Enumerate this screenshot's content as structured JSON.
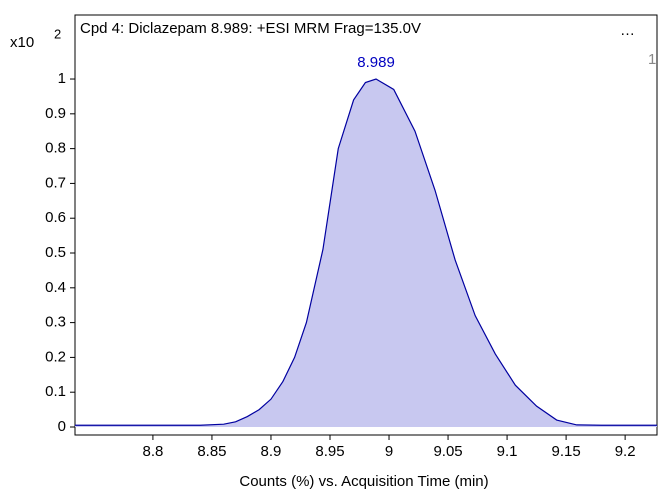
{
  "chart_data": {
    "type": "area",
    "title": "Cpd 4: Diclazepam 8.989: +ESI MRM Frag=135.0V",
    "menu": "…",
    "panel_number": "1",
    "y_multiplier": {
      "base": "x10",
      "exponent": "2"
    },
    "xlabel": "Counts (%) vs. Acquisition Time (min)",
    "x": [
      8.734,
      8.76,
      8.8,
      8.84,
      8.86,
      8.87,
      8.88,
      8.89,
      8.9,
      8.91,
      8.92,
      8.93,
      8.944,
      8.957,
      8.97,
      8.98,
      8.989,
      9.004,
      9.022,
      9.039,
      9.056,
      9.073,
      9.09,
      9.107,
      9.125,
      9.142,
      9.159,
      9.18,
      9.227
    ],
    "series": [
      {
        "name": "Diclazepam",
        "color": "#0000a0",
        "fill": "#c8c8f0",
        "values": [
          0.005,
          0.005,
          0.005,
          0.005,
          0.008,
          0.015,
          0.03,
          0.05,
          0.08,
          0.13,
          0.2,
          0.3,
          0.51,
          0.8,
          0.94,
          0.99,
          1.0,
          0.97,
          0.85,
          0.68,
          0.48,
          0.32,
          0.21,
          0.12,
          0.06,
          0.02,
          0.006,
          0.005,
          0.005
        ]
      }
    ],
    "annotations": [
      {
        "x": 8.989,
        "y": 1.0,
        "text": "8.989",
        "color": "#0000c0"
      }
    ],
    "xlim": [
      8.734,
      9.227
    ],
    "ylim": [
      -0.023,
      1.184
    ],
    "xticks": [
      8.8,
      8.85,
      8.9,
      8.95,
      9,
      9.05,
      9.1,
      9.15,
      9.2
    ],
    "yticks": [
      0,
      0.1,
      0.2,
      0.3,
      0.4,
      0.5,
      0.6,
      0.7,
      0.8,
      0.9,
      1
    ]
  }
}
